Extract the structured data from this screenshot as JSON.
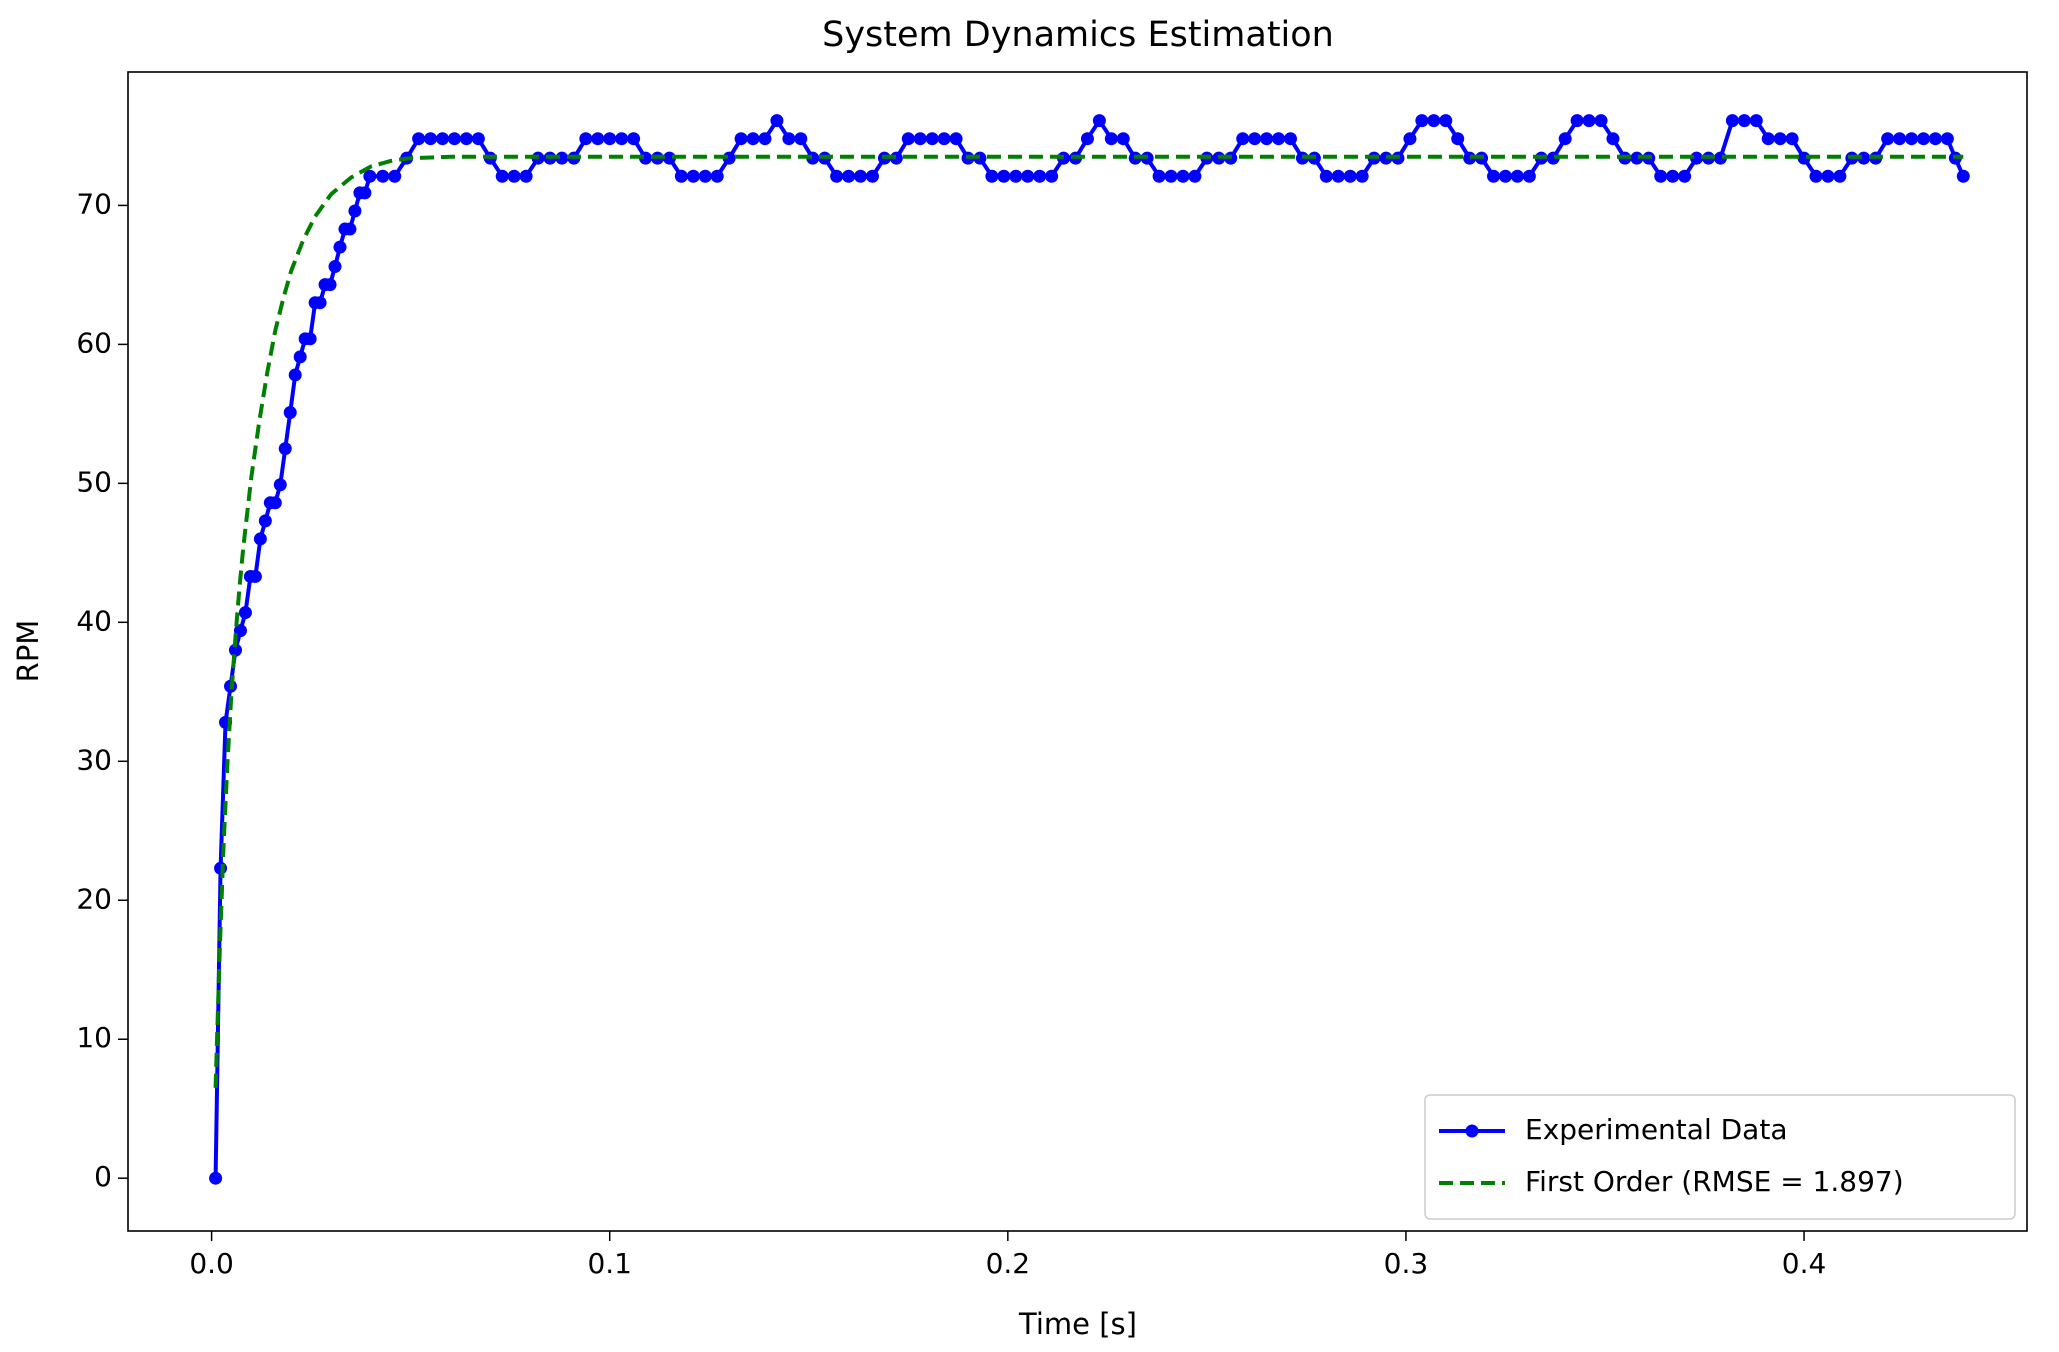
{
  "chart_data": {
    "type": "line",
    "title": "System Dynamics Estimation",
    "xlabel": "Time [s]",
    "ylabel": "RPM",
    "xlim": [
      -0.021,
      0.456
    ],
    "ylim": [
      -3.8,
      79.6
    ],
    "xticks": [
      {
        "value": 0,
        "label": "0.0"
      },
      0.1,
      0.2,
      0.3,
      0.4
    ],
    "yticks": [
      0,
      10,
      20,
      30,
      40,
      50,
      60,
      70
    ],
    "grid": false,
    "legend": "lower right",
    "series": [
      {
        "name": "Experimental Data",
        "color": "#0000ff",
        "style": "solid",
        "marker": true,
        "x": [
          0.001,
          0.00225,
          0.0035,
          0.00475,
          0.006,
          0.00725,
          0.0085,
          0.00975,
          0.011,
          0.01225,
          0.0135,
          0.01475,
          0.016,
          0.01725,
          0.0185,
          0.01975,
          0.021,
          0.02225,
          0.0235,
          0.02475,
          0.026,
          0.02725,
          0.0285,
          0.02975,
          0.031,
          0.03225,
          0.0335,
          0.03475,
          0.036,
          0.03725,
          0.0385,
          0.03975,
          0.043,
          0.046,
          0.049,
          0.052,
          0.055,
          0.058,
          0.061,
          0.064,
          0.067,
          0.07,
          0.073,
          0.076,
          0.079,
          0.082,
          0.085,
          0.088,
          0.091,
          0.094,
          0.097,
          0.1,
          0.103,
          0.106,
          0.109,
          0.112,
          0.115,
          0.118,
          0.121,
          0.124,
          0.127,
          0.13,
          0.133,
          0.136,
          0.139,
          0.142,
          0.145,
          0.148,
          0.151,
          0.154,
          0.157,
          0.16,
          0.163,
          0.166,
          0.169,
          0.172,
          0.175,
          0.178,
          0.181,
          0.184,
          0.187,
          0.19,
          0.193,
          0.196,
          0.199,
          0.202,
          0.205,
          0.208,
          0.211,
          0.214,
          0.217,
          0.22,
          0.223,
          0.226,
          0.229,
          0.232,
          0.235,
          0.238,
          0.241,
          0.244,
          0.247,
          0.25,
          0.253,
          0.256,
          0.259,
          0.262,
          0.265,
          0.268,
          0.271,
          0.274,
          0.277,
          0.28,
          0.283,
          0.286,
          0.289,
          0.292,
          0.295,
          0.298,
          0.301,
          0.304,
          0.307,
          0.31,
          0.313,
          0.316,
          0.319,
          0.322,
          0.325,
          0.328,
          0.331,
          0.334,
          0.337,
          0.34,
          0.343,
          0.346,
          0.349,
          0.352,
          0.355,
          0.358,
          0.361,
          0.364,
          0.367,
          0.37,
          0.373,
          0.376,
          0.379,
          0.382,
          0.385,
          0.388,
          0.391,
          0.394,
          0.397,
          0.4,
          0.403,
          0.406,
          0.409,
          0.412,
          0.415,
          0.418,
          0.421,
          0.424,
          0.427,
          0.43,
          0.433,
          0.436,
          0.438,
          0.44
        ],
        "values": [
          0,
          22.3,
          32.8,
          35.4,
          38.0,
          39.4,
          40.7,
          43.3,
          43.3,
          46.0,
          47.3,
          48.6,
          48.6,
          49.9,
          52.5,
          55.1,
          57.8,
          59.1,
          60.4,
          60.4,
          63.0,
          63.0,
          64.3,
          64.3,
          65.6,
          67.0,
          68.3,
          68.3,
          69.6,
          70.9,
          70.9,
          72.1,
          72.1,
          72.1,
          73.4,
          74.8,
          74.8,
          74.8,
          74.8,
          74.8,
          74.8,
          73.4,
          72.1,
          72.1,
          72.1,
          73.4,
          73.4,
          73.4,
          73.4,
          74.8,
          74.8,
          74.8,
          74.8,
          74.8,
          73.4,
          73.4,
          73.4,
          72.1,
          72.1,
          72.1,
          72.1,
          73.4,
          74.8,
          74.8,
          74.8,
          76.1,
          74.8,
          74.8,
          73.4,
          73.4,
          72.1,
          72.1,
          72.1,
          72.1,
          73.4,
          73.4,
          74.8,
          74.8,
          74.8,
          74.8,
          74.8,
          73.4,
          73.4,
          72.1,
          72.1,
          72.1,
          72.1,
          72.1,
          72.1,
          73.4,
          73.4,
          74.8,
          76.1,
          74.8,
          74.8,
          73.4,
          73.4,
          72.1,
          72.1,
          72.1,
          72.1,
          73.4,
          73.4,
          73.4,
          74.8,
          74.8,
          74.8,
          74.8,
          74.8,
          73.4,
          73.4,
          72.1,
          72.1,
          72.1,
          72.1,
          73.4,
          73.4,
          73.4,
          74.8,
          76.1,
          76.1,
          76.1,
          74.8,
          73.4,
          73.4,
          72.1,
          72.1,
          72.1,
          72.1,
          73.4,
          73.4,
          74.8,
          76.1,
          76.1,
          76.1,
          74.8,
          73.4,
          73.4,
          73.4,
          72.1,
          72.1,
          72.1,
          73.4,
          73.4,
          73.4,
          76.1,
          76.1,
          76.1,
          74.8,
          74.8,
          74.8,
          73.4,
          72.1,
          72.1,
          72.1,
          73.4,
          73.4,
          73.4,
          74.8,
          74.8,
          74.8,
          74.8,
          74.8,
          74.8,
          73.4,
          72.1
        ]
      },
      {
        "name": "First Order (RMSE = 1.897)",
        "color": "#008000",
        "style": "dashed",
        "marker": false,
        "x": [
          0.001,
          0.002,
          0.003,
          0.004,
          0.005,
          0.006,
          0.007,
          0.008,
          0.01,
          0.012,
          0.014,
          0.016,
          0.018,
          0.02,
          0.023,
          0.026,
          0.03,
          0.035,
          0.04,
          0.045,
          0.05,
          0.06,
          0.44
        ],
        "values": [
          6.5,
          16,
          24,
          30,
          35,
          39,
          42.5,
          45.5,
          50.5,
          54.5,
          58,
          61,
          63.3,
          65.3,
          67.5,
          69.2,
          70.8,
          72.0,
          72.8,
          73.2,
          73.4,
          73.5,
          73.5
        ]
      }
    ]
  }
}
